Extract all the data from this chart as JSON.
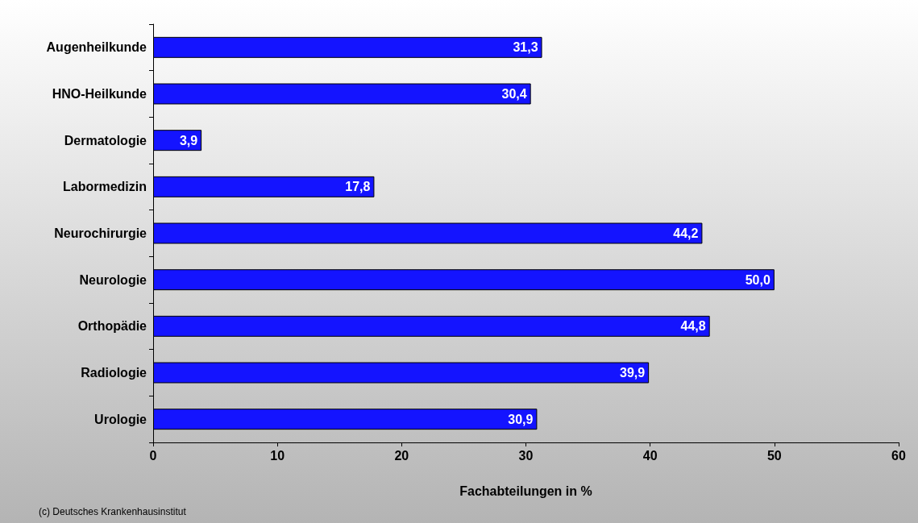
{
  "chart_data": {
    "type": "bar",
    "orientation": "horizontal",
    "xlabel": "Fachabteilungen in %",
    "categories": [
      "Augenheilkunde",
      "HNO-Heilkunde",
      "Dermatologie",
      "Labormedizin",
      "Neurochirurgie",
      "Neurologie",
      "Orthopädie",
      "Radiologie",
      "Urologie"
    ],
    "values": [
      31.3,
      30.4,
      3.9,
      17.8,
      44.2,
      50.0,
      44.8,
      39.9,
      30.9
    ],
    "value_labels": [
      "31,3",
      "30,4",
      "3,9",
      "17,8",
      "44,2",
      "50,0",
      "44,8",
      "39,9",
      "30,9"
    ],
    "color": "#1414ff",
    "xlim": [
      0,
      60
    ],
    "xticks": [
      0,
      10,
      20,
      30,
      40,
      50,
      60
    ],
    "grid": false,
    "annotations": [
      "(c) Deutsches Krankenhausinstitut"
    ]
  }
}
